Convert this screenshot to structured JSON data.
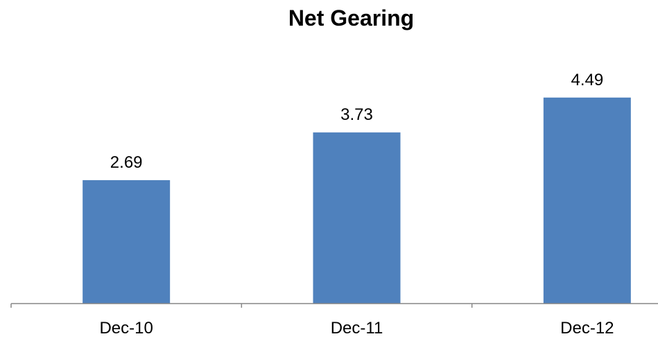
{
  "chart_data": {
    "type": "bar",
    "title": "Net Gearing",
    "categories": [
      "Dec-10",
      "Dec-11",
      "Dec-12"
    ],
    "series": [
      {
        "values": [
          2.69,
          3.73,
          4.49
        ]
      }
    ],
    "data_labels": [
      "2.69",
      "3.73",
      "4.49"
    ],
    "xlabel": "",
    "ylabel": "",
    "ylim": [
      0,
      5
    ],
    "grid": false,
    "legend": "none",
    "colors": {
      "bar": "#4F81BD",
      "axis": "#868686",
      "text": "#000000"
    }
  }
}
